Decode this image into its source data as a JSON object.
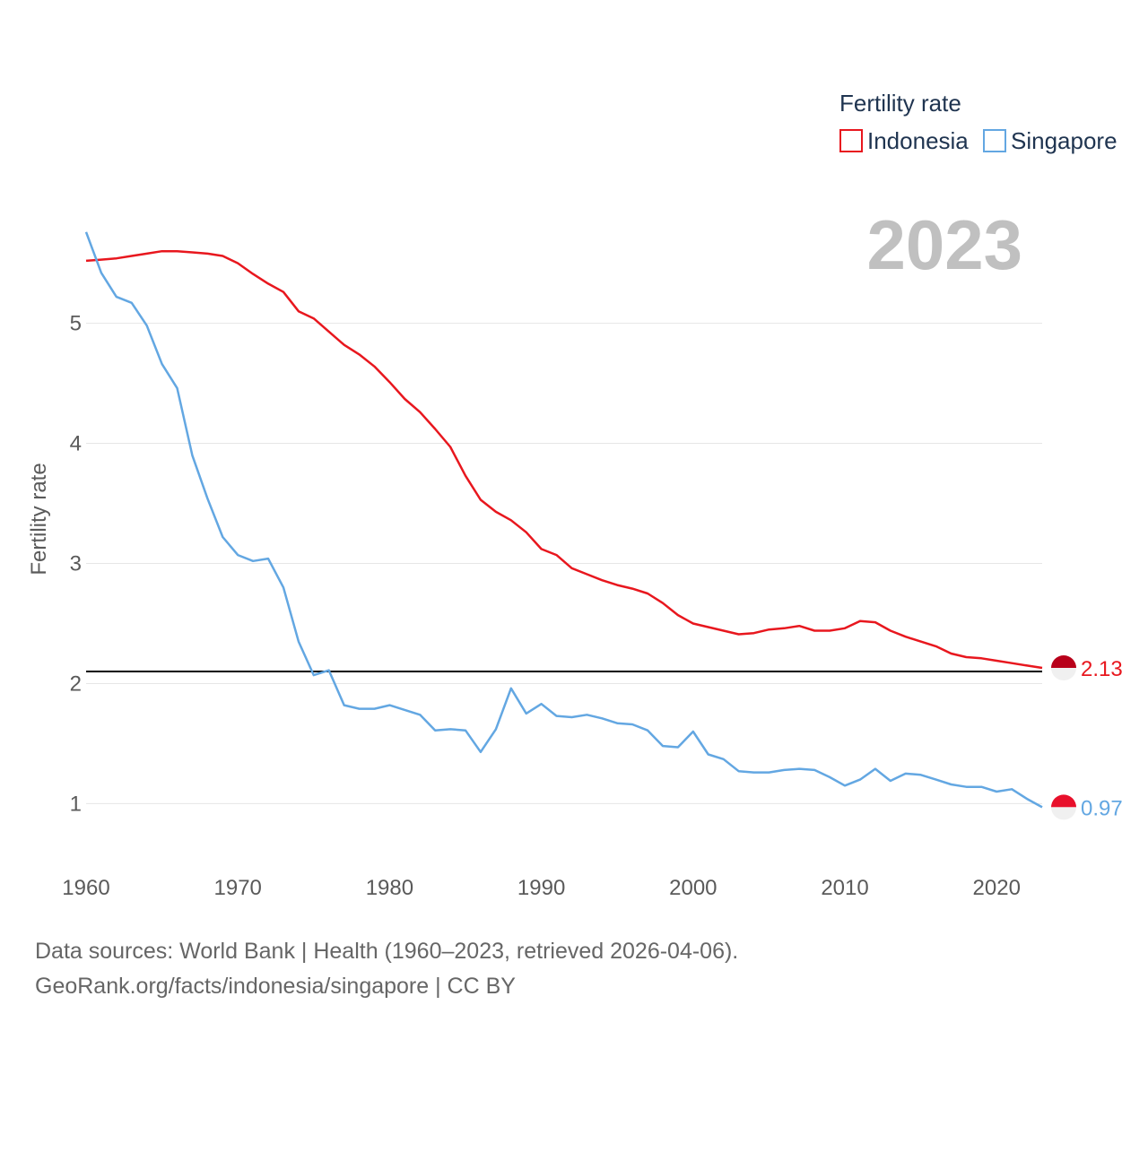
{
  "chart_data": {
    "type": "line",
    "title": "Fertility rate",
    "year_label": "2023",
    "ylabel": "Fertility rate",
    "xlabel": "",
    "xlim": [
      1960,
      2023
    ],
    "ylim": [
      0.6,
      5.9
    ],
    "x_ticks": [
      1960,
      1970,
      1980,
      1990,
      2000,
      2010,
      2020
    ],
    "x_tick_labels": [
      "1960",
      "1970",
      "1980",
      "1990",
      "2000",
      "2010",
      "2020"
    ],
    "y_ticks": [
      1,
      2,
      3,
      4,
      5
    ],
    "y_tick_labels": [
      "1",
      "2",
      "3",
      "4",
      "5"
    ],
    "reference_line": 2.1,
    "legend": {
      "title": "Fertility rate",
      "position": "top-right"
    },
    "x": [
      1960,
      1961,
      1962,
      1963,
      1964,
      1965,
      1966,
      1967,
      1968,
      1969,
      1970,
      1971,
      1972,
      1973,
      1974,
      1975,
      1976,
      1977,
      1978,
      1979,
      1980,
      1981,
      1982,
      1983,
      1984,
      1985,
      1986,
      1987,
      1988,
      1989,
      1990,
      1991,
      1992,
      1993,
      1994,
      1995,
      1996,
      1997,
      1998,
      1999,
      2000,
      2001,
      2002,
      2003,
      2004,
      2005,
      2006,
      2007,
      2008,
      2009,
      2010,
      2011,
      2012,
      2013,
      2014,
      2015,
      2016,
      2017,
      2018,
      2019,
      2020,
      2021,
      2022,
      2023
    ],
    "series": [
      {
        "name": "Indonesia",
        "color": "#e8171e",
        "flag_top": "#b8001a",
        "flag_bottom": "#f0f0f0",
        "end_label": "2.13",
        "values": [
          5.52,
          5.53,
          5.54,
          5.56,
          5.58,
          5.6,
          5.6,
          5.59,
          5.58,
          5.56,
          5.5,
          5.41,
          5.33,
          5.26,
          5.1,
          5.04,
          4.93,
          4.82,
          4.74,
          4.64,
          4.51,
          4.37,
          4.26,
          4.12,
          3.97,
          3.73,
          3.53,
          3.43,
          3.36,
          3.26,
          3.12,
          3.07,
          2.96,
          2.91,
          2.86,
          2.82,
          2.79,
          2.75,
          2.67,
          2.57,
          2.5,
          2.47,
          2.44,
          2.41,
          2.42,
          2.45,
          2.46,
          2.48,
          2.44,
          2.44,
          2.46,
          2.52,
          2.51,
          2.44,
          2.39,
          2.35,
          2.31,
          2.25,
          2.22,
          2.21,
          2.19,
          2.17,
          2.15,
          2.13
        ]
      },
      {
        "name": "Singapore",
        "color": "#63a7e2",
        "flag_top": "#e8102b",
        "flag_bottom": "#f0f0f0",
        "end_label": "0.97",
        "values": [
          5.76,
          5.42,
          5.22,
          5.17,
          4.98,
          4.66,
          4.46,
          3.9,
          3.54,
          3.22,
          3.07,
          3.02,
          3.04,
          2.8,
          2.35,
          2.07,
          2.11,
          1.82,
          1.79,
          1.79,
          1.82,
          1.78,
          1.74,
          1.61,
          1.62,
          1.61,
          1.43,
          1.62,
          1.96,
          1.75,
          1.83,
          1.73,
          1.72,
          1.74,
          1.71,
          1.67,
          1.66,
          1.61,
          1.48,
          1.47,
          1.6,
          1.41,
          1.37,
          1.27,
          1.26,
          1.26,
          1.28,
          1.29,
          1.28,
          1.22,
          1.15,
          1.2,
          1.29,
          1.19,
          1.25,
          1.24,
          1.2,
          1.16,
          1.14,
          1.14,
          1.1,
          1.12,
          1.04,
          0.97
        ]
      }
    ]
  },
  "footer": {
    "line1": "Data sources: World Bank | Health (1960–2023, retrieved 2026-04-06).",
    "line2": "GeoRank.org/facts/indonesia/singapore | CC BY"
  }
}
